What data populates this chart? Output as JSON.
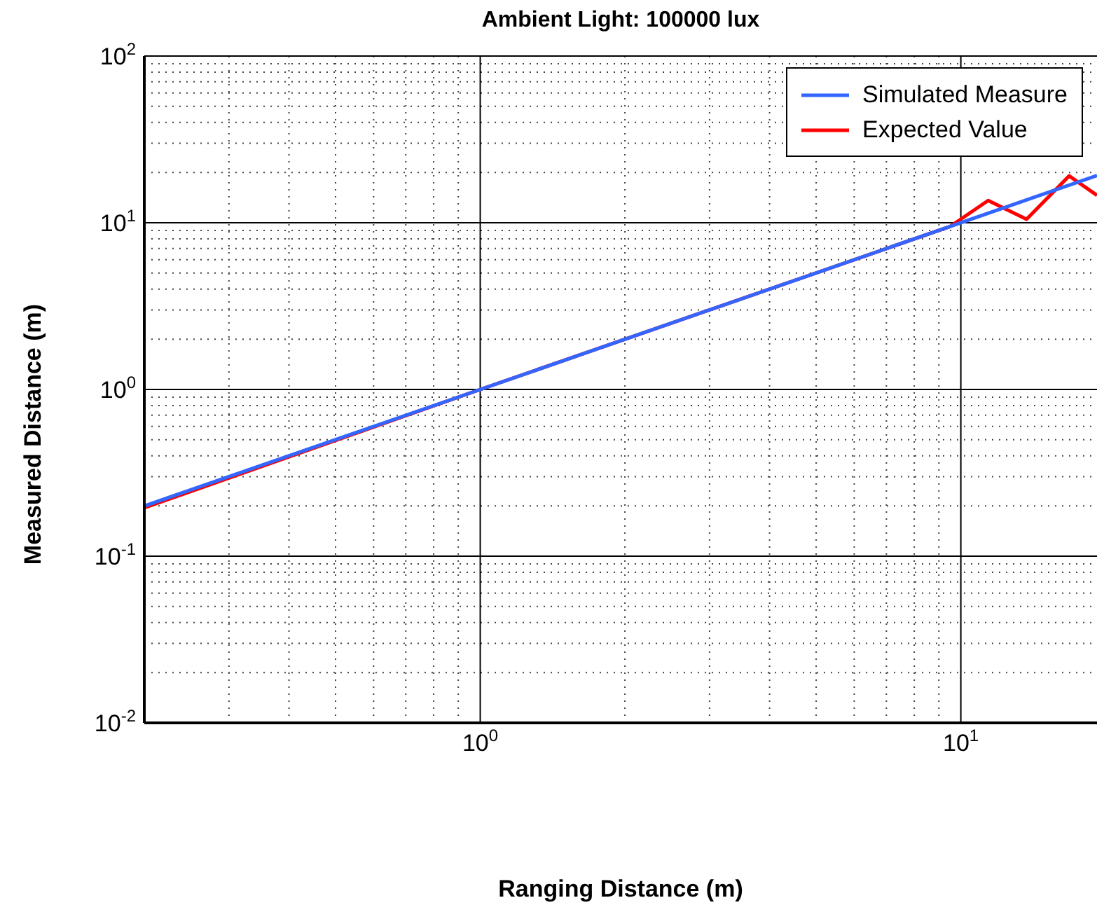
{
  "chart_data": {
    "type": "line",
    "title": "Ambient Light: 100000 lux",
    "xlabel": "Ranging Distance (m)",
    "ylabel": "Measured Distance (m)",
    "log": "xy",
    "grid": true,
    "legend": "top right",
    "line_style": "solid",
    "marker": "none",
    "xlim": [
      0.2,
      19.2
    ],
    "ylim": [
      0.01,
      100
    ],
    "xticks": [
      {
        "value": 0.2,
        "label": null
      },
      {
        "value": 0.3,
        "label": null
      },
      {
        "value": 0.4,
        "label": null
      },
      {
        "value": 0.5,
        "label": null
      },
      {
        "value": 0.6,
        "label": null
      },
      {
        "value": 0.7,
        "label": null
      },
      {
        "value": 0.8,
        "label": null
      },
      {
        "value": 0.9,
        "label": null
      },
      {
        "value": 1,
        "label": "10$^{0}$"
      },
      {
        "value": 2,
        "label": null
      },
      {
        "value": 3,
        "label": null
      },
      {
        "value": 4,
        "label": null
      },
      {
        "value": 5,
        "label": null
      },
      {
        "value": 6,
        "label": null
      },
      {
        "value": 7,
        "label": null
      },
      {
        "value": 8,
        "label": null
      },
      {
        "value": 9,
        "label": null
      },
      {
        "value": 10,
        "label": "10$^{1}$"
      }
    ],
    "yticks": [
      {
        "value": 0.01,
        "label": "10$^{-2}$"
      },
      {
        "value": 0.02,
        "label": null
      },
      {
        "value": 0.03,
        "label": null
      },
      {
        "value": 0.04,
        "label": null
      },
      {
        "value": 0.05,
        "label": null
      },
      {
        "value": 0.06,
        "label": null
      },
      {
        "value": 0.07,
        "label": null
      },
      {
        "value": 0.08,
        "label": null
      },
      {
        "value": 0.09,
        "label": null
      },
      {
        "value": 0.1,
        "label": "10$^{-1}$"
      },
      {
        "value": 0.2,
        "label": null
      },
      {
        "value": 0.3,
        "label": null
      },
      {
        "value": 0.4,
        "label": null
      },
      {
        "value": 0.5,
        "label": null
      },
      {
        "value": 0.6,
        "label": null
      },
      {
        "value": 0.7,
        "label": null
      },
      {
        "value": 0.8,
        "label": null
      },
      {
        "value": 0.9,
        "label": null
      },
      {
        "value": 1,
        "label": "10$^{0}$"
      },
      {
        "value": 2,
        "label": null
      },
      {
        "value": 3,
        "label": null
      },
      {
        "value": 4,
        "label": null
      },
      {
        "value": 5,
        "label": null
      },
      {
        "value": 6,
        "label": null
      },
      {
        "value": 7,
        "label": null
      },
      {
        "value": 8,
        "label": null
      },
      {
        "value": 9,
        "label": null
      },
      {
        "value": 10,
        "label": "10$^{1}$"
      },
      {
        "value": 20,
        "label": null
      },
      {
        "value": 30,
        "label": null
      },
      {
        "value": 40,
        "label": null
      },
      {
        "value": 50,
        "label": null
      },
      {
        "value": 60,
        "label": null
      },
      {
        "value": 70,
        "label": null
      },
      {
        "value": 80,
        "label": null
      },
      {
        "value": 90,
        "label": null
      },
      {
        "value": 100,
        "label": "10$^{2}$"
      }
    ],
    "series": [
      {
        "name": "Simulated Measure",
        "color": "#3366ff",
        "x": [
          0.2,
          19.2
        ],
        "values": [
          0.2,
          19.2
        ]
      },
      {
        "name": "Expected Value",
        "color": "#ff0000",
        "x": [
          0.2,
          1,
          9.5,
          11.4,
          13.7,
          16.8,
          19.2
        ],
        "values": [
          0.195,
          1,
          9.5,
          13.6,
          10.5,
          19.1,
          14.6
        ]
      }
    ]
  }
}
